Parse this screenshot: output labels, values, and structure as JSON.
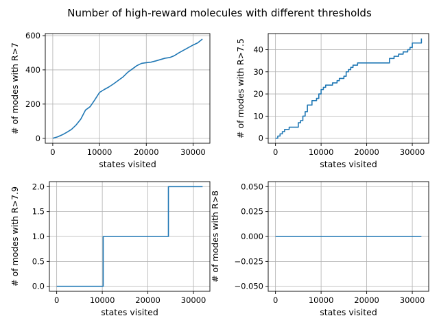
{
  "figure": {
    "title": "Number of high-reward molecules with different thresholds"
  },
  "chart_data": [
    {
      "type": "line",
      "xlabel": "states visited",
      "ylabel": "# of modes with R>7",
      "xlim": [
        -1600,
        33600
      ],
      "ylim": [
        -29,
        612
      ],
      "xticks": [
        0,
        10000,
        20000,
        30000
      ],
      "xtick_labels": [
        "0",
        "10000",
        "20000",
        "30000"
      ],
      "yticks": [
        0,
        200,
        400,
        600
      ],
      "ytick_labels": [
        "0",
        "200",
        "400",
        "600"
      ],
      "grid": true,
      "color": "#1f77b4",
      "series": [
        {
          "step": false,
          "x": [
            0,
            1000,
            2000,
            3000,
            4000,
            5000,
            6000,
            7000,
            8000,
            9000,
            10000,
            11000,
            12000,
            13000,
            14000,
            15000,
            16000,
            17000,
            18000,
            19000,
            20000,
            21000,
            22000,
            23000,
            24000,
            25000,
            26000,
            27000,
            28000,
            29000,
            30000,
            31000,
            32000
          ],
          "y": [
            0,
            8,
            20,
            35,
            52,
            78,
            112,
            165,
            185,
            225,
            268,
            285,
            300,
            318,
            338,
            358,
            385,
            405,
            425,
            438,
            442,
            445,
            452,
            460,
            468,
            472,
            483,
            500,
            515,
            530,
            545,
            558,
            580
          ]
        }
      ]
    },
    {
      "type": "line",
      "xlabel": "states visited",
      "ylabel": "# of modes with R>7.5",
      "xlim": [
        -1600,
        33600
      ],
      "ylim": [
        -2.25,
        47.25
      ],
      "xticks": [
        0,
        10000,
        20000,
        30000
      ],
      "xtick_labels": [
        "0",
        "10000",
        "20000",
        "30000"
      ],
      "yticks": [
        0,
        10,
        20,
        30,
        40
      ],
      "ytick_labels": [
        "0",
        "10",
        "20",
        "30",
        "40"
      ],
      "grid": true,
      "color": "#1f77b4",
      "series": [
        {
          "step": true,
          "x": [
            0,
            500,
            1000,
            1500,
            2000,
            2500,
            3000,
            4500,
            5000,
            5500,
            6000,
            6500,
            7000,
            8000,
            9000,
            9500,
            10000,
            10500,
            11000,
            12000,
            12500,
            13000,
            13500,
            14000,
            15000,
            15500,
            16000,
            16500,
            17000,
            18000,
            25000,
            26000,
            27000,
            28000,
            28500,
            29000,
            29500,
            30000,
            31500,
            32000
          ],
          "y": [
            0,
            1,
            2,
            3,
            4,
            4,
            5,
            5,
            7,
            8,
            10,
            12,
            15,
            17,
            18,
            20,
            22,
            23,
            24,
            24,
            25,
            25,
            26,
            27,
            28,
            30,
            31,
            32,
            33,
            34,
            36,
            37,
            38,
            39,
            39,
            40,
            41,
            43,
            43,
            45
          ]
        }
      ]
    },
    {
      "type": "line",
      "xlabel": "states visited",
      "ylabel": "# of modes with R>7.9",
      "xlim": [
        -1600,
        33600
      ],
      "ylim": [
        -0.1,
        2.1
      ],
      "xticks": [
        0,
        10000,
        20000,
        30000
      ],
      "xtick_labels": [
        "0",
        "10000",
        "20000",
        "30000"
      ],
      "yticks": [
        0,
        0.5,
        1.0,
        1.5,
        2.0
      ],
      "ytick_labels": [
        "0.0",
        "0.5",
        "1.0",
        "1.5",
        "2.0"
      ],
      "grid": true,
      "color": "#1f77b4",
      "series": [
        {
          "step": true,
          "x": [
            0,
            10200,
            24500,
            32000
          ],
          "y": [
            0,
            1,
            2,
            2
          ]
        }
      ]
    },
    {
      "type": "line",
      "xlabel": "states visited",
      "ylabel": "# of modes with R>8",
      "xlim": [
        -1600,
        33600
      ],
      "ylim": [
        -0.055,
        0.055
      ],
      "xticks": [
        0,
        10000,
        20000,
        30000
      ],
      "xtick_labels": [
        "0",
        "10000",
        "20000",
        "30000"
      ],
      "yticks": [
        -0.05,
        -0.025,
        0,
        0.025,
        0.05
      ],
      "ytick_labels": [
        "−0.050",
        "−0.025",
        "0.000",
        "0.025",
        "0.050"
      ],
      "grid": true,
      "color": "#1f77b4",
      "series": [
        {
          "step": false,
          "x": [
            0,
            32000
          ],
          "y": [
            0,
            0
          ]
        }
      ]
    }
  ]
}
